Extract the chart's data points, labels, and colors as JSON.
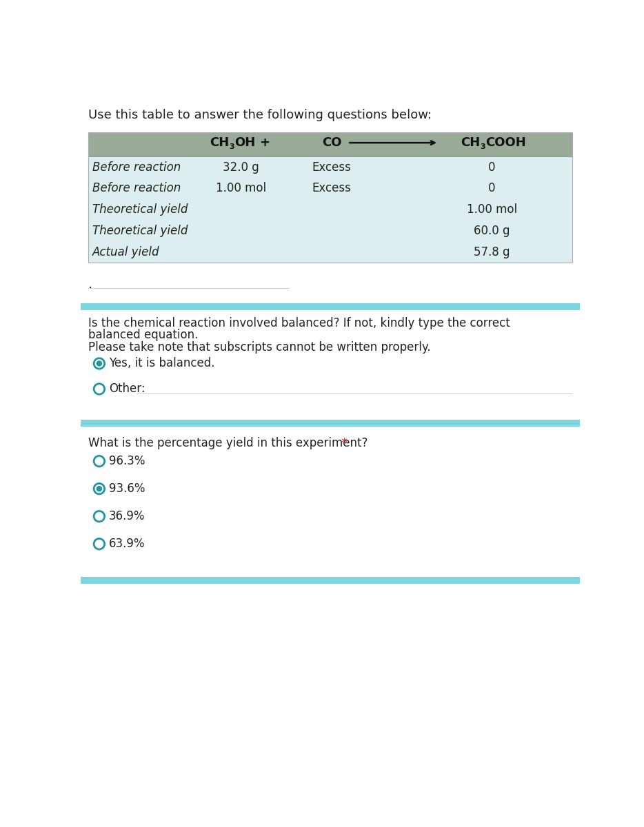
{
  "title": "Use this table to answer the following questions below:",
  "table_header_bg": "#9aaa99",
  "table_body_bg": "#ddeef0",
  "section_bar_color": "#7dd6df",
  "table_rows": [
    [
      "Before reaction",
      "32.0 g",
      "Excess",
      "0"
    ],
    [
      "Before reaction",
      "1.00 mol",
      "Excess",
      "0"
    ],
    [
      "Theoretical yield",
      "",
      "",
      "1.00 mol"
    ],
    [
      "Theoretical yield",
      "",
      "",
      "60.0 g"
    ],
    [
      "Actual yield",
      "",
      "",
      "57.8 g"
    ]
  ],
  "q1_text_line1": "Is the chemical reaction involved balanced? If not, kindly type the correct",
  "q1_text_line2": "balanced equation.",
  "q1_note": "Please take note that subscripts cannot be written properly.",
  "q1_options": [
    {
      "label": "Yes, it is balanced.",
      "selected": true
    },
    {
      "label": "Other:",
      "selected": false,
      "has_line": true
    }
  ],
  "q2_text": "What is the percentage yield in this experiment?",
  "q2_required": true,
  "q2_options": [
    {
      "label": "96.3%",
      "selected": false
    },
    {
      "label": "93.6%",
      "selected": true
    },
    {
      "label": "36.9%",
      "selected": false
    },
    {
      "label": "63.9%",
      "selected": false
    }
  ],
  "bg_color": "#ffffff",
  "text_color": "#222222",
  "radio_color": "#2196a0",
  "font_size_title": 13,
  "font_size_table": 12,
  "font_size_body": 12
}
